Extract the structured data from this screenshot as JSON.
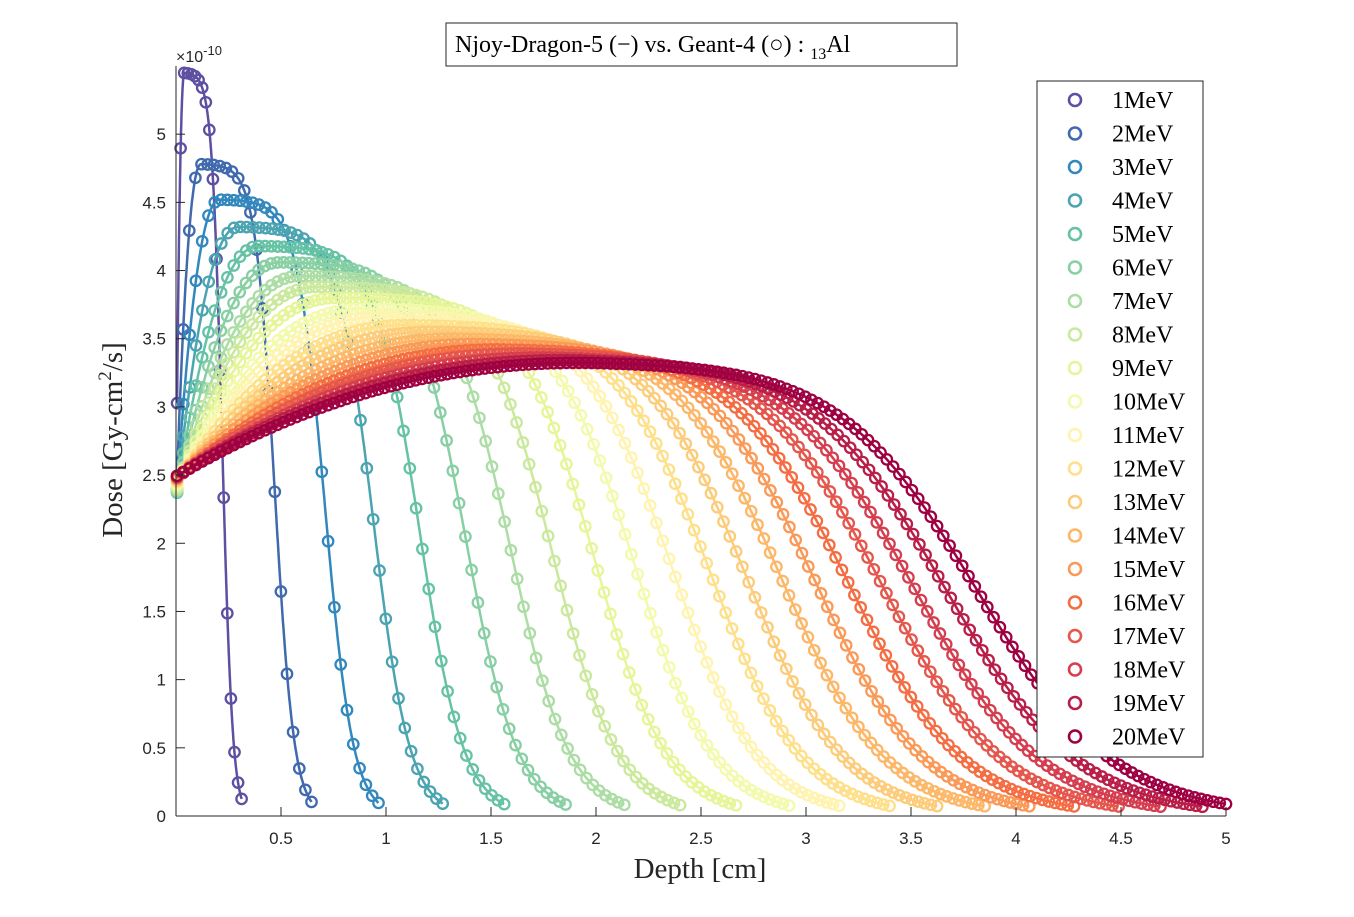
{
  "chart_data": {
    "type": "line",
    "title_main": "Njoy-Dragon-5 (−) vs. Geant-4 (○) : ",
    "title_sub": "13",
    "title_elem": "Al",
    "xlabel": "Depth [cm]",
    "ylabel_pre": "Dose [Gy-cm",
    "ylabel_sup": "2",
    "ylabel_post": "/s]",
    "y_exponent_base": "×10",
    "y_exponent": "-10",
    "xlim": [
      0,
      5
    ],
    "ylim": [
      0,
      5.5
    ],
    "x_ticks": [
      0.5,
      1,
      1.5,
      2,
      2.5,
      3,
      3.5,
      4,
      4.5,
      5
    ],
    "x_tick_labels": [
      "0.5",
      "1",
      "1.5",
      "2",
      "2.5",
      "3",
      "3.5",
      "4",
      "4.5",
      "5"
    ],
    "y_ticks": [
      0,
      0.5,
      1,
      1.5,
      2,
      2.5,
      3,
      3.5,
      4,
      4.5,
      5
    ],
    "y_tick_labels": [
      "0",
      "0.5",
      "1",
      "1.5",
      "2",
      "2.5",
      "3",
      "3.5",
      "4",
      "4.5",
      "5"
    ],
    "grid": false,
    "legend_position": "top-right",
    "marker": "circle",
    "series": [
      {
        "name": "1MeV",
        "color": "#5e4fa2",
        "range": 0.22,
        "peak_x": 0.04,
        "peak_y": 5.45,
        "surface": 2.2
      },
      {
        "name": "2MeV",
        "color": "#4069ae",
        "range": 0.47,
        "peak_x": 0.12,
        "peak_y": 4.78,
        "surface": 2.25
      },
      {
        "name": "3MeV",
        "color": "#3288bd",
        "range": 0.71,
        "peak_x": 0.21,
        "peak_y": 4.52,
        "surface": 2.28
      },
      {
        "name": "4MeV",
        "color": "#4ba4b1",
        "range": 0.94,
        "peak_x": 0.3,
        "peak_y": 4.32,
        "surface": 2.3
      },
      {
        "name": "5MeV",
        "color": "#66c2a5",
        "range": 1.16,
        "peak_x": 0.4,
        "peak_y": 4.18,
        "surface": 2.32
      },
      {
        "name": "6MeV",
        "color": "#88cfa4",
        "range": 1.38,
        "peak_x": 0.5,
        "peak_y": 4.06,
        "surface": 2.34
      },
      {
        "name": "7MeV",
        "color": "#abdda4",
        "range": 1.59,
        "peak_x": 0.6,
        "peak_y": 3.96,
        "surface": 2.36
      },
      {
        "name": "8MeV",
        "color": "#cbe99d",
        "range": 1.79,
        "peak_x": 0.68,
        "peak_y": 3.88,
        "surface": 2.38
      },
      {
        "name": "9MeV",
        "color": "#e6f598",
        "range": 1.99,
        "peak_x": 0.78,
        "peak_y": 3.8,
        "surface": 2.4
      },
      {
        "name": "10MeV",
        "color": "#f3faac",
        "range": 2.18,
        "peak_x": 0.9,
        "peak_y": 3.72,
        "surface": 2.42
      },
      {
        "name": "11MeV",
        "color": "#fff3b0",
        "range": 2.36,
        "peak_x": 1.0,
        "peak_y": 3.66,
        "surface": 2.43
      },
      {
        "name": "12MeV",
        "color": "#fee08b",
        "range": 2.54,
        "peak_x": 1.12,
        "peak_y": 3.6,
        "surface": 2.44
      },
      {
        "name": "13MeV",
        "color": "#fdcc7a",
        "range": 2.71,
        "peak_x": 1.24,
        "peak_y": 3.55,
        "surface": 2.45
      },
      {
        "name": "14MeV",
        "color": "#fdb768",
        "range": 2.88,
        "peak_x": 1.36,
        "peak_y": 3.5,
        "surface": 2.46
      },
      {
        "name": "15MeV",
        "color": "#fa9a58",
        "range": 3.04,
        "peak_x": 1.48,
        "peak_y": 3.46,
        "surface": 2.47
      },
      {
        "name": "16MeV",
        "color": "#f46d43",
        "range": 3.2,
        "peak_x": 1.6,
        "peak_y": 3.42,
        "surface": 2.47
      },
      {
        "name": "17MeV",
        "color": "#e5564d",
        "range": 3.36,
        "peak_x": 1.72,
        "peak_y": 3.39,
        "surface": 2.48
      },
      {
        "name": "18MeV",
        "color": "#d53e4f",
        "range": 3.51,
        "peak_x": 1.84,
        "peak_y": 3.36,
        "surface": 2.48
      },
      {
        "name": "19MeV",
        "color": "#b81e48",
        "range": 3.66,
        "peak_x": 1.94,
        "peak_y": 3.34,
        "surface": 2.49
      },
      {
        "name": "20MeV",
        "color": "#9e0142",
        "range": 3.81,
        "peak_x": 2.04,
        "peak_y": 3.32,
        "surface": 2.49
      }
    ]
  }
}
